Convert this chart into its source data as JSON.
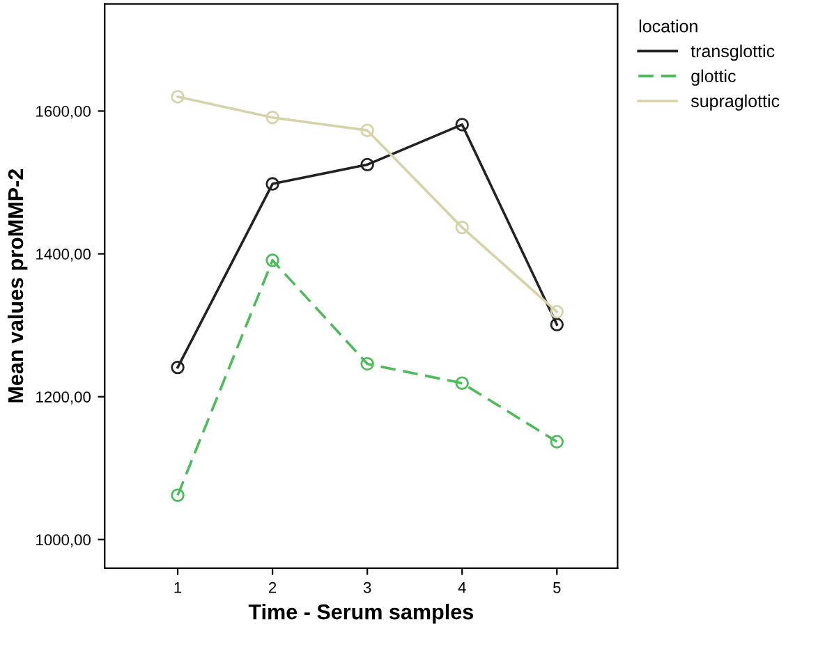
{
  "chart_data": {
    "type": "line",
    "xlabel": "Time - Serum samples",
    "ylabel": "Mean values proMMP-2",
    "legend_title": "location",
    "legend": "top right",
    "marker": "circle",
    "grid": false,
    "x": [
      1,
      2,
      3,
      4,
      5
    ],
    "xlim": [
      0.23,
      5.64
    ],
    "xticks": [
      1,
      2,
      3,
      4,
      5
    ],
    "ylim": [
      960,
      1750
    ],
    "yticks": [
      {
        "value": 1000,
        "label": "1000,00"
      },
      {
        "value": 1200,
        "label": "1200,00"
      },
      {
        "value": 1400,
        "label": "1400,00"
      },
      {
        "value": 1600,
        "label": "1600,00"
      }
    ],
    "series": [
      {
        "name": "transglottic",
        "color": "#222222",
        "line_style": "solid",
        "values": [
          1241,
          1498,
          1525,
          1581,
          1301
        ]
      },
      {
        "name": "glottic",
        "color": "#4cbb5a",
        "line_style": "dashed",
        "values": [
          1062,
          1391,
          1246,
          1219,
          1137
        ]
      },
      {
        "name": "supraglottic",
        "color": "#d6d3a8",
        "line_style": "solid",
        "values": [
          1620,
          1591,
          1573,
          1437,
          1319
        ]
      }
    ]
  }
}
